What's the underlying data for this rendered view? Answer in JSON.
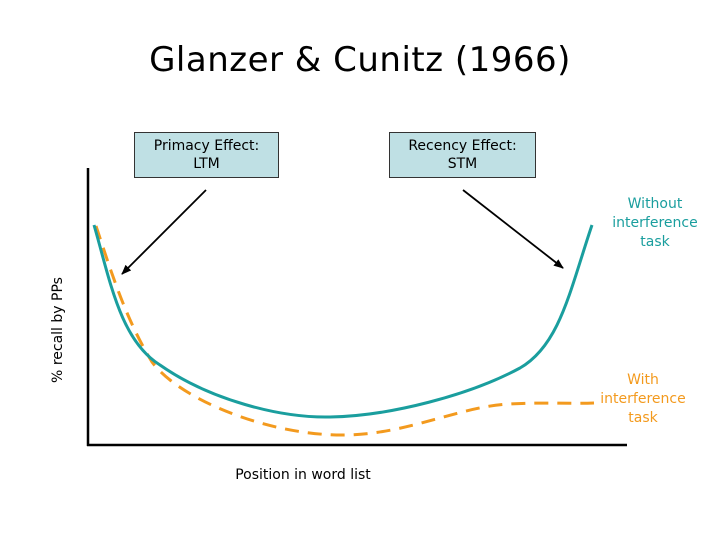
{
  "title": "Glanzer & Cunitz (1966)",
  "callouts": {
    "primacy": {
      "line1": "Primacy Effect:",
      "line2": "LTM"
    },
    "recency": {
      "line1": "Recency Effect:",
      "line2": "STM"
    }
  },
  "axes": {
    "ylabel": "% recall by PPs",
    "xlabel": "Position in word list"
  },
  "series": {
    "without": {
      "line1": "Without",
      "line2": "interference",
      "line3": "task",
      "color": "#1a9e9e",
      "style": "solid"
    },
    "with": {
      "line1": "With",
      "line2": "interference",
      "line3": "task",
      "color": "#f39a1e",
      "style": "dashed"
    }
  }
}
